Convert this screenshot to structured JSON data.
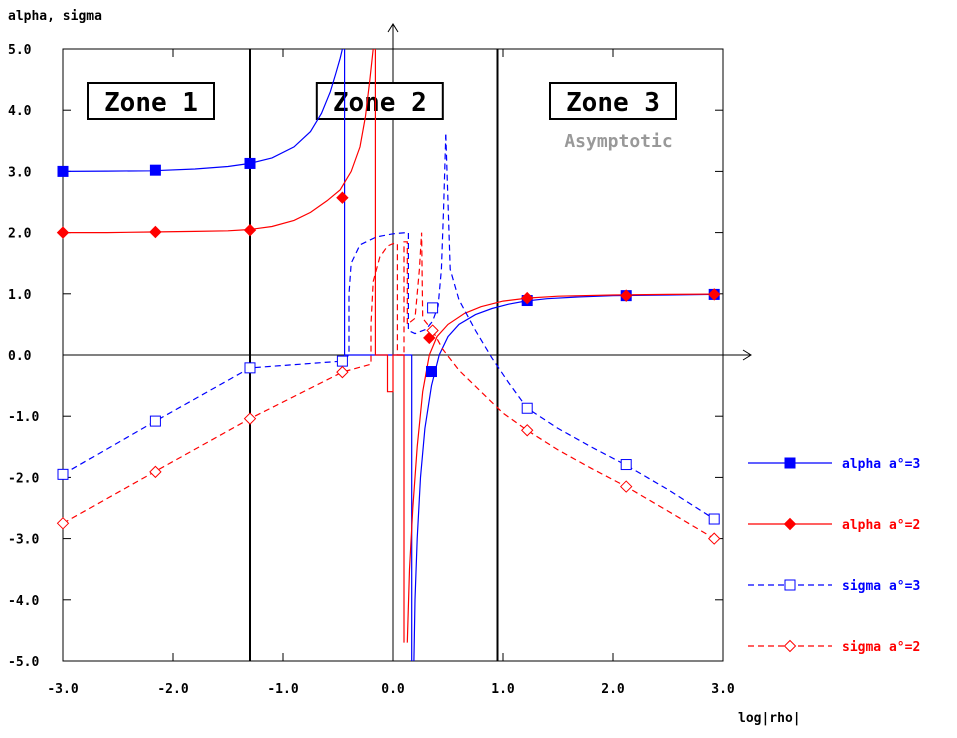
{
  "colors": {
    "blue": "#0000ff",
    "red": "#ff0000",
    "gray": "#999999",
    "black": "#000000"
  },
  "chart_data": {
    "type": "line",
    "ylabel": "alpha, sigma",
    "xlabel": "log|rho|",
    "xlim": [
      -3.0,
      3.0
    ],
    "ylim": [
      -5.0,
      5.0
    ],
    "x_ticks": [
      {
        "value": -3.0,
        "label": "-3.0"
      },
      {
        "value": -2.0,
        "label": "-2.0"
      },
      {
        "value": -1.0,
        "label": "-1.0"
      },
      {
        "value": 0.0,
        "label": "0.0"
      },
      {
        "value": 1.0,
        "label": "1.0"
      },
      {
        "value": 2.0,
        "label": "2.0"
      },
      {
        "value": 3.0,
        "label": "3.0"
      }
    ],
    "y_ticks": [
      {
        "value": 5.0,
        "label": "5.0"
      },
      {
        "value": 4.0,
        "label": "4.0"
      },
      {
        "value": 3.0,
        "label": "3.0"
      },
      {
        "value": 2.0,
        "label": "2.0"
      },
      {
        "value": 1.0,
        "label": "1.0"
      },
      {
        "value": 0.0,
        "label": "0.0"
      },
      {
        "value": -1.0,
        "label": "-1.0"
      },
      {
        "value": -2.0,
        "label": "-2.0"
      },
      {
        "value": -3.0,
        "label": "-3.0"
      },
      {
        "value": -4.0,
        "label": "-4.0"
      },
      {
        "value": -5.0,
        "label": "-5.0"
      }
    ],
    "zone_boundaries": [
      -1.3,
      0.95
    ],
    "zones": [
      {
        "label": "Zone 1",
        "x": -2.2
      },
      {
        "label": "Zone 2",
        "x": -0.12
      },
      {
        "label": "Zone 3",
        "x": 2.0
      }
    ],
    "annotations": [
      {
        "text": "Asymptotic",
        "x": 2.05,
        "y": 3.5
      }
    ],
    "series": [
      {
        "name": "alpha a°=3",
        "color": "#0000ff",
        "dash": "",
        "marker": "square-filled",
        "segments": [
          [
            [
              -3.0,
              3.0
            ],
            [
              -2.6,
              3.005
            ],
            [
              -2.2,
              3.01
            ],
            [
              -1.8,
              3.04
            ],
            [
              -1.5,
              3.08
            ],
            [
              -1.3,
              3.13
            ],
            [
              -1.1,
              3.22
            ],
            [
              -0.9,
              3.4
            ],
            [
              -0.75,
              3.65
            ],
            [
              -0.65,
              3.95
            ],
            [
              -0.57,
              4.3
            ],
            [
              -0.52,
              4.6
            ],
            [
              -0.48,
              4.85
            ],
            [
              -0.46,
              5.0
            ]
          ],
          [
            [
              -0.44,
              5.0
            ],
            [
              -0.44,
              2.0
            ],
            [
              -0.44,
              0.0
            ],
            [
              -0.36,
              0.0
            ],
            [
              0.0,
              0.0
            ],
            [
              0.17,
              0.0
            ],
            [
              0.17,
              -5.0
            ]
          ],
          [
            [
              0.19,
              -5.0
            ],
            [
              0.2,
              -4.0
            ],
            [
              0.22,
              -3.0
            ],
            [
              0.25,
              -2.0
            ],
            [
              0.29,
              -1.2
            ],
            [
              0.35,
              -0.5
            ],
            [
              0.42,
              0.0
            ],
            [
              0.5,
              0.3
            ],
            [
              0.6,
              0.5
            ],
            [
              0.75,
              0.66
            ],
            [
              0.9,
              0.76
            ],
            [
              1.05,
              0.83
            ],
            [
              1.2,
              0.88
            ],
            [
              1.4,
              0.92
            ],
            [
              1.7,
              0.95
            ],
            [
              2.0,
              0.97
            ],
            [
              2.5,
              0.98
            ],
            [
              2.9,
              0.99
            ]
          ]
        ],
        "points": [
          [
            -3.0,
            3.0
          ],
          [
            -2.16,
            3.02
          ],
          [
            -1.3,
            3.13
          ],
          [
            0.35,
            -0.27
          ],
          [
            1.22,
            0.89
          ],
          [
            2.12,
            0.97
          ],
          [
            2.92,
            0.99
          ]
        ]
      },
      {
        "name": "alpha a°=2",
        "color": "#ff0000",
        "dash": "",
        "marker": "diamond-filled",
        "segments": [
          [
            [
              -3.0,
              2.0
            ],
            [
              -2.6,
              2.0
            ],
            [
              -2.2,
              2.01
            ],
            [
              -1.8,
              2.02
            ],
            [
              -1.5,
              2.03
            ],
            [
              -1.3,
              2.05
            ],
            [
              -1.1,
              2.1
            ],
            [
              -0.9,
              2.2
            ],
            [
              -0.75,
              2.33
            ],
            [
              -0.6,
              2.52
            ],
            [
              -0.48,
              2.7
            ],
            [
              -0.38,
              3.0
            ],
            [
              -0.3,
              3.4
            ],
            [
              -0.25,
              3.9
            ],
            [
              -0.21,
              4.5
            ],
            [
              -0.18,
              5.0
            ]
          ],
          [
            [
              -0.16,
              5.0
            ],
            [
              -0.16,
              -0.0
            ],
            [
              -0.05,
              -0.0
            ],
            [
              -0.05,
              -0.6
            ],
            [
              0.0,
              -0.6
            ],
            [
              0.0,
              0.0
            ],
            [
              0.1,
              0.0
            ],
            [
              0.1,
              -4.7
            ]
          ],
          [
            [
              0.13,
              -4.7
            ],
            [
              0.15,
              -3.5
            ],
            [
              0.18,
              -2.5
            ],
            [
              0.22,
              -1.5
            ],
            [
              0.27,
              -0.6
            ],
            [
              0.33,
              0.0
            ],
            [
              0.4,
              0.3
            ],
            [
              0.5,
              0.5
            ],
            [
              0.65,
              0.68
            ],
            [
              0.8,
              0.79
            ],
            [
              1.0,
              0.88
            ],
            [
              1.22,
              0.93
            ],
            [
              1.5,
              0.96
            ],
            [
              2.0,
              0.98
            ],
            [
              2.5,
              0.99
            ],
            [
              2.9,
              0.995
            ]
          ]
        ],
        "points": [
          [
            -3.0,
            2.0
          ],
          [
            -2.16,
            2.01
          ],
          [
            -1.3,
            2.04
          ],
          [
            -0.46,
            2.57
          ],
          [
            0.33,
            0.28
          ],
          [
            1.22,
            0.93
          ],
          [
            2.12,
            0.97
          ],
          [
            2.92,
            0.99
          ]
        ]
      },
      {
        "name": "sigma a°=3",
        "color": "#0000ff",
        "dash": "6,4",
        "marker": "square-open",
        "segments": [
          [
            [
              -3.0,
              -1.95
            ],
            [
              -2.16,
              -1.08
            ],
            [
              -1.3,
              -0.21
            ],
            [
              -0.46,
              -0.1
            ],
            [
              -0.4,
              0.0
            ],
            [
              -0.4,
              1.0
            ],
            [
              -0.38,
              1.5
            ],
            [
              -0.3,
              1.8
            ],
            [
              -0.15,
              1.93
            ],
            [
              0.0,
              1.98
            ],
            [
              0.12,
              2.0
            ],
            [
              0.14,
              2.0
            ],
            [
              0.14,
              0.4
            ],
            [
              0.2,
              0.35
            ],
            [
              0.3,
              0.42
            ],
            [
              0.36,
              0.55
            ],
            [
              0.41,
              0.8
            ],
            [
              0.44,
              1.4
            ],
            [
              0.46,
              2.4
            ],
            [
              0.48,
              3.6
            ]
          ],
          [
            [
              0.48,
              3.6
            ],
            [
              0.52,
              1.4
            ],
            [
              0.6,
              0.9
            ],
            [
              0.75,
              0.4
            ],
            [
              0.9,
              -0.05
            ],
            [
              1.05,
              -0.45
            ],
            [
              1.22,
              -0.87
            ],
            [
              1.5,
              -1.2
            ],
            [
              1.8,
              -1.5
            ],
            [
              2.12,
              -1.8
            ],
            [
              2.5,
              -2.2
            ],
            [
              2.92,
              -2.68
            ]
          ]
        ],
        "points": [
          [
            -3.0,
            -1.95
          ],
          [
            -2.16,
            -1.08
          ],
          [
            -1.3,
            -0.21
          ],
          [
            -0.46,
            -0.1
          ],
          [
            0.36,
            0.77
          ],
          [
            1.22,
            -0.87
          ],
          [
            2.12,
            -1.79
          ],
          [
            2.92,
            -2.68
          ]
        ]
      },
      {
        "name": "sigma a°=2",
        "color": "#ff0000",
        "dash": "6,4",
        "marker": "diamond-open",
        "segments": [
          [
            [
              -3.0,
              -2.75
            ],
            [
              -2.16,
              -1.9
            ],
            [
              -1.3,
              -1.04
            ],
            [
              -0.46,
              -0.28
            ],
            [
              -0.3,
              -0.2
            ],
            [
              -0.2,
              -0.15
            ],
            [
              -0.2,
              0.5
            ],
            [
              -0.18,
              1.2
            ],
            [
              -0.12,
              1.6
            ],
            [
              -0.05,
              1.78
            ],
            [
              0.0,
              1.82
            ],
            [
              0.04,
              1.82
            ],
            [
              0.04,
              0.0
            ],
            [
              0.1,
              0.0
            ],
            [
              0.1,
              1.85
            ],
            [
              0.13,
              1.85
            ],
            [
              0.13,
              0.5
            ],
            [
              0.2,
              0.6
            ],
            [
              0.24,
              1.4
            ],
            [
              0.26,
              2.0
            ],
            [
              0.27,
              0.6
            ],
            [
              0.36,
              0.4
            ]
          ],
          [
            [
              0.36,
              0.4
            ],
            [
              0.45,
              0.1
            ],
            [
              0.6,
              -0.25
            ],
            [
              0.8,
              -0.6
            ],
            [
              1.0,
              -0.95
            ],
            [
              1.22,
              -1.23
            ],
            [
              1.5,
              -1.55
            ],
            [
              1.8,
              -1.85
            ],
            [
              2.12,
              -2.15
            ],
            [
              2.5,
              -2.55
            ],
            [
              2.92,
              -3.0
            ]
          ]
        ],
        "points": [
          [
            -3.0,
            -2.75
          ],
          [
            -2.16,
            -1.91
          ],
          [
            -1.3,
            -1.04
          ],
          [
            -0.46,
            -0.28
          ],
          [
            0.36,
            0.4
          ],
          [
            1.22,
            -1.23
          ],
          [
            2.12,
            -2.15
          ],
          [
            2.92,
            -3.0
          ]
        ]
      }
    ]
  }
}
